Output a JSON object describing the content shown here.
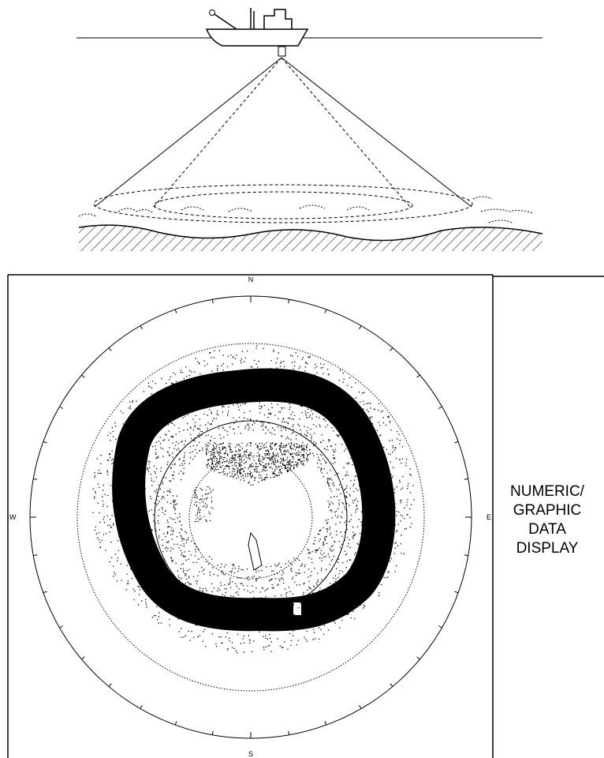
{
  "compass": {
    "north": "N",
    "south": "S",
    "west": "W",
    "east": "E"
  },
  "panel": {
    "lines": [
      "NUMERIC/",
      "GRAPHIC",
      "DATA",
      "DISPLAY"
    ]
  }
}
